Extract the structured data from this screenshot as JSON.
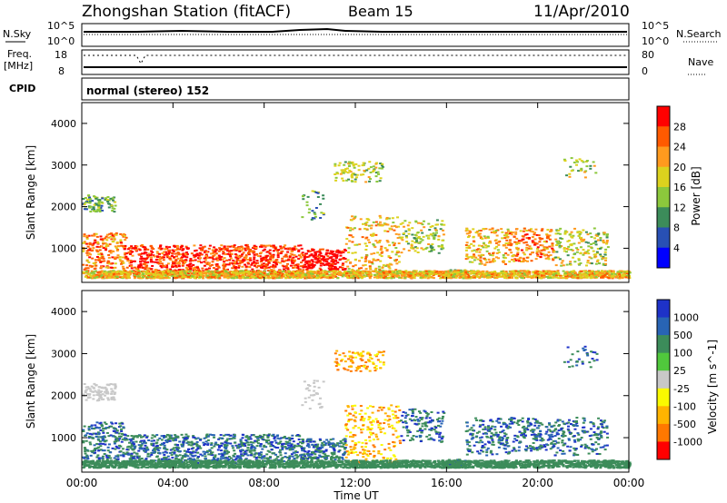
{
  "header": {
    "title": "Zhongshan Station (fitACF)",
    "beam": "Beam 15",
    "date": "11/Apr/2010"
  },
  "strip": {
    "nsky_label": "N.Sky",
    "nsky_ticks": [
      "10^5",
      "10^0"
    ],
    "nsearch_label": "N.Search",
    "nsearch_ticks": [
      "10^5",
      "10^0"
    ],
    "freq_label": "Freq.",
    "freq_unit": "[MHz]",
    "freq_ticks": [
      "18",
      "8"
    ],
    "nave_label": "Nave",
    "nave_ticks": [
      "80",
      "0"
    ],
    "cpid_label": "CPID",
    "cpid_text": "normal (stereo) 152"
  },
  "chart_data": [
    {
      "type": "heatmap",
      "quantity": "Power",
      "ylabel": "Slant Range [km]",
      "ylim": [
        180,
        4500
      ],
      "yticks": [
        "4000",
        "3000",
        "2000",
        "1000"
      ],
      "colorbar_label": "Power [dB]",
      "colorbar_ticks": [
        "28",
        "24",
        "20",
        "16",
        "12",
        "8",
        "4"
      ],
      "colorbar_colors": [
        "#ff0000",
        "#ff5a00",
        "#ff9a1e",
        "#dcd21e",
        "#8cc83c",
        "#3c8c5a",
        "#2850b4",
        "#0000ff"
      ]
    },
    {
      "type": "heatmap",
      "quantity": "Velocity",
      "ylabel": "Slant Range [km]",
      "ylim": [
        180,
        4500
      ],
      "yticks": [
        "4000",
        "3000",
        "2000",
        "1000"
      ],
      "colorbar_label": "Velocity [m s^-1]",
      "colorbar_ticks": [
        "1000",
        "500",
        "100",
        "25",
        "-25",
        "-100",
        "-500",
        "-1000"
      ],
      "colorbar_colors": [
        "#1e32c8",
        "#2864b4",
        "#3c8c5a",
        "#50c83c",
        "#c8c8c8",
        "#fafa00",
        "#ffb400",
        "#ff7800",
        "#ff0000"
      ]
    }
  ],
  "xaxis": {
    "label": "Time UT",
    "ticks": [
      "00:00",
      "04:00",
      "08:00",
      "12:00",
      "16:00",
      "20:00",
      "00:00"
    ]
  }
}
